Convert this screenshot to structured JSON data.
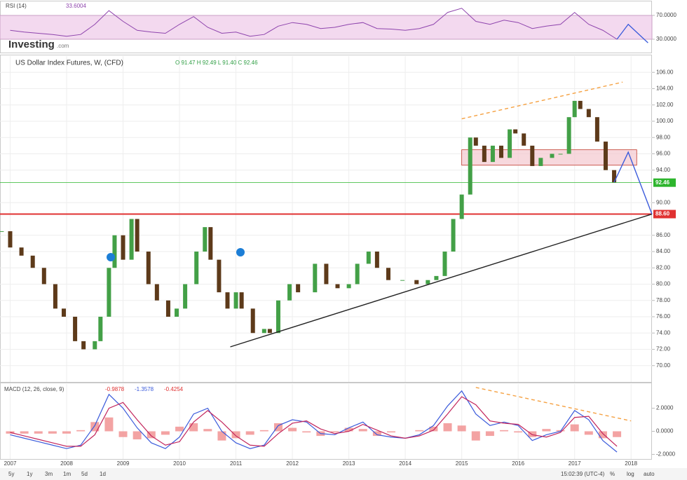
{
  "brand": "Investing",
  "brand_suffix": ".com",
  "toolbar": {
    "ranges": [
      "5y",
      "1y",
      "3m",
      "1m",
      "5d",
      "1d"
    ],
    "time": "15:02:39 (UTC-4)",
    "options": [
      "%",
      "log",
      "auto"
    ]
  },
  "chart_data": [
    {
      "type": "line",
      "title": "RSI (14)",
      "readout": "33.6004",
      "color": "#8e44ad",
      "band": [
        30,
        70
      ],
      "band_color": "#f3d9ef",
      "xlim": [
        2006.82,
        2018.37
      ],
      "ylim": [
        10,
        90
      ],
      "yticks": [
        {
          "value": 30,
          "label": "30.0000"
        },
        {
          "value": 70,
          "label": "70.0000"
        }
      ],
      "x": [
        2007.0,
        2007.25,
        2007.5,
        2007.75,
        2008.0,
        2008.25,
        2008.5,
        2008.75,
        2009.0,
        2009.25,
        2009.5,
        2009.75,
        2010.0,
        2010.25,
        2010.5,
        2010.75,
        2011.0,
        2011.25,
        2011.5,
        2011.75,
        2012.0,
        2012.25,
        2012.5,
        2012.75,
        2013.0,
        2013.25,
        2013.5,
        2013.75,
        2014.0,
        2014.25,
        2014.5,
        2014.75,
        2015.0,
        2015.25,
        2015.5,
        2015.75,
        2016.0,
        2016.25,
        2016.5,
        2016.75,
        2017.0,
        2017.25,
        2017.5,
        2017.75
      ],
      "values": [
        45,
        42,
        40,
        38,
        35,
        38,
        55,
        78,
        60,
        45,
        42,
        40,
        55,
        68,
        50,
        40,
        42,
        35,
        38,
        52,
        58,
        55,
        48,
        50,
        55,
        58,
        48,
        47,
        45,
        48,
        55,
        75,
        82,
        60,
        55,
        62,
        58,
        48,
        52,
        55,
        75,
        55,
        45,
        30
      ],
      "projection": {
        "color": "#3b5bdb",
        "x": [
          2017.75,
          2017.95,
          2018.3
        ],
        "y": [
          30,
          55,
          24
        ]
      }
    },
    {
      "type": "candlestick",
      "title": "US Dollar Index Futures, W, (CFD)",
      "readout": "O 91.47 H 92.49 L 91.40 C 92.46",
      "up_color": "#43a047",
      "down_color": "#5d3a1a",
      "grid": true,
      "xlim": [
        2006.82,
        2018.37
      ],
      "ylim": [
        68,
        108
      ],
      "yticks": [
        {
          "value": 70,
          "label": "70.00"
        },
        {
          "value": 72,
          "label": "72.00"
        },
        {
          "value": 74,
          "label": "74.00"
        },
        {
          "value": 76,
          "label": "76.00"
        },
        {
          "value": 78,
          "label": "78.00"
        },
        {
          "value": 80,
          "label": "80.00"
        },
        {
          "value": 82,
          "label": "82.00"
        },
        {
          "value": 84,
          "label": "84.00"
        },
        {
          "value": 86,
          "label": "86.00"
        },
        {
          "value": 90,
          "label": "90.00"
        },
        {
          "value": 94,
          "label": "94.00"
        },
        {
          "value": 96,
          "label": "96.00"
        },
        {
          "value": 98,
          "label": "98.00"
        },
        {
          "value": 100,
          "label": "100.00"
        },
        {
          "value": 102,
          "label": "102.00"
        },
        {
          "value": 104,
          "label": "104.00"
        },
        {
          "value": 106,
          "label": "106.00"
        }
      ],
      "x": [
        2006.85,
        2007.0,
        2007.2,
        2007.4,
        2007.6,
        2007.8,
        2007.95,
        2008.15,
        2008.3,
        2008.5,
        2008.6,
        2008.75,
        2008.85,
        2009.0,
        2009.15,
        2009.25,
        2009.45,
        2009.6,
        2009.8,
        2009.95,
        2010.1,
        2010.3,
        2010.45,
        2010.55,
        2010.7,
        2010.85,
        2011.0,
        2011.1,
        2011.3,
        2011.5,
        2011.6,
        2011.75,
        2011.95,
        2012.1,
        2012.4,
        2012.6,
        2012.8,
        2013.0,
        2013.15,
        2013.35,
        2013.5,
        2013.7,
        2013.95,
        2014.2,
        2014.4,
        2014.55,
        2014.7,
        2014.85,
        2015.0,
        2015.15,
        2015.25,
        2015.4,
        2015.55,
        2015.7,
        2015.85,
        2015.95,
        2016.1,
        2016.25,
        2016.4,
        2016.6,
        2016.75,
        2016.9,
        2017.0,
        2017.1,
        2017.25,
        2017.4,
        2017.55,
        2017.7
      ],
      "values": [
        86.5,
        84.5,
        83.5,
        82,
        80,
        77,
        76,
        73,
        72,
        73,
        76,
        82,
        86,
        83,
        88,
        84,
        80,
        78,
        76,
        77,
        80,
        84,
        87,
        83,
        79,
        77,
        79,
        77,
        74,
        74.5,
        74,
        78,
        80,
        79,
        82.5,
        80,
        79.5,
        80,
        82.5,
        84,
        82,
        80.5,
        80.5,
        80,
        80.5,
        81,
        84,
        88,
        91,
        98,
        97,
        95,
        97,
        95.5,
        99,
        98.5,
        97,
        94.5,
        95.5,
        96,
        96,
        100.5,
        102.5,
        101.5,
        100.5,
        97.5,
        94,
        92.5
      ],
      "zone": {
        "x": [
          2015.0,
          2018.1
        ],
        "y": [
          94.6,
          96.5
        ],
        "color": "#f4c7cf"
      },
      "levels": [
        {
          "value": 92.46,
          "label": "92.46",
          "color": "#2db52d"
        },
        {
          "value": 88.6,
          "label": "88.60",
          "color": "#e03131"
        }
      ],
      "lines": [
        {
          "color": "#f5a142",
          "dash": true,
          "x": [
            2015.0,
            2017.85
          ],
          "y": [
            100.3,
            104.8
          ]
        },
        {
          "color": "#222222",
          "dash": false,
          "x": [
            2010.9,
            2018.37
          ],
          "y": [
            72.3,
            88.6
          ]
        },
        {
          "color": "#3b5bdb",
          "dash": false,
          "x": [
            2017.7,
            2017.95,
            2018.37
          ],
          "y": [
            92.5,
            96.2,
            88.6
          ]
        }
      ]
    },
    {
      "type": "macd",
      "title": "MACD (12, 26, close, 9)",
      "readouts": [
        {
          "text": "-0.9878",
          "color": "#e03131"
        },
        {
          "text": "-1.3578",
          "color": "#3b5bdb"
        },
        {
          "text": "-0.4254",
          "color": "#e03131"
        }
      ],
      "macd_color": "#3b5bdb",
      "signal_color": "#c2255c",
      "hist_color": "#f08c8c",
      "xlim": [
        2006.82,
        2018.37
      ],
      "ylim": [
        -2.4,
        4.1
      ],
      "yticks": [
        {
          "value": -2,
          "label": "-2.0000"
        },
        {
          "value": 0,
          "label": "0.0000"
        },
        {
          "value": 2,
          "label": "2.0000"
        }
      ],
      "xticks": [
        2007,
        2008,
        2009,
        2010,
        2011,
        2012,
        2013,
        2014,
        2015,
        2016,
        2017,
        2018
      ],
      "x": [
        2007.0,
        2007.25,
        2007.5,
        2007.75,
        2008.0,
        2008.25,
        2008.5,
        2008.75,
        2009.0,
        2009.25,
        2009.5,
        2009.75,
        2010.0,
        2010.25,
        2010.5,
        2010.75,
        2011.0,
        2011.25,
        2011.5,
        2011.75,
        2012.0,
        2012.25,
        2012.5,
        2012.75,
        2013.0,
        2013.25,
        2013.5,
        2013.75,
        2014.0,
        2014.25,
        2014.5,
        2014.75,
        2015.0,
        2015.25,
        2015.5,
        2015.75,
        2016.0,
        2016.25,
        2016.5,
        2016.75,
        2017.0,
        2017.25,
        2017.5,
        2017.75
      ],
      "macd": [
        -0.3,
        -0.6,
        -0.9,
        -1.2,
        -1.5,
        -1.2,
        0.5,
        3.2,
        2.0,
        0.3,
        -1.0,
        -1.5,
        -0.5,
        1.5,
        2.0,
        0.0,
        -1.0,
        -1.5,
        -1.2,
        0.5,
        1.0,
        0.8,
        -0.2,
        -0.3,
        0.3,
        0.8,
        -0.3,
        -0.5,
        -0.6,
        -0.3,
        0.5,
        2.2,
        3.5,
        1.5,
        0.5,
        0.8,
        0.5,
        -0.8,
        -0.3,
        0.0,
        1.8,
        1.0,
        -0.8,
        -1.8
      ],
      "signal": [
        -0.1,
        -0.4,
        -0.7,
        -1.0,
        -1.3,
        -1.3,
        -0.3,
        2.0,
        2.5,
        1.0,
        -0.4,
        -1.2,
        -0.9,
        0.8,
        1.8,
        0.8,
        -0.4,
        -1.2,
        -1.3,
        -0.2,
        0.7,
        0.9,
        0.2,
        -0.2,
        0.0,
        0.6,
        0.1,
        -0.4,
        -0.6,
        -0.4,
        0.1,
        1.5,
        3.0,
        2.3,
        0.9,
        0.7,
        0.6,
        -0.3,
        -0.5,
        -0.1,
        1.2,
        1.3,
        -0.2,
        -1.3
      ],
      "histogram": [
        -0.2,
        -0.2,
        -0.2,
        -0.2,
        -0.2,
        0.1,
        0.8,
        1.2,
        -0.5,
        -0.7,
        -0.6,
        -0.3,
        0.4,
        0.7,
        0.2,
        -0.8,
        -0.6,
        -0.3,
        0.1,
        0.7,
        0.3,
        -0.1,
        -0.4,
        -0.1,
        0.3,
        0.2,
        -0.4,
        -0.1,
        0,
        0.1,
        0.4,
        0.7,
        0.5,
        -0.8,
        -0.4,
        0.1,
        -0.1,
        -0.5,
        0.2,
        0.1,
        0.6,
        -0.3,
        -0.6,
        -0.5
      ],
      "lines": [
        {
          "color": "#f5a142",
          "dash": true,
          "x": [
            2015.25,
            2018.0
          ],
          "y": [
            3.8,
            0.9
          ]
        }
      ]
    }
  ]
}
